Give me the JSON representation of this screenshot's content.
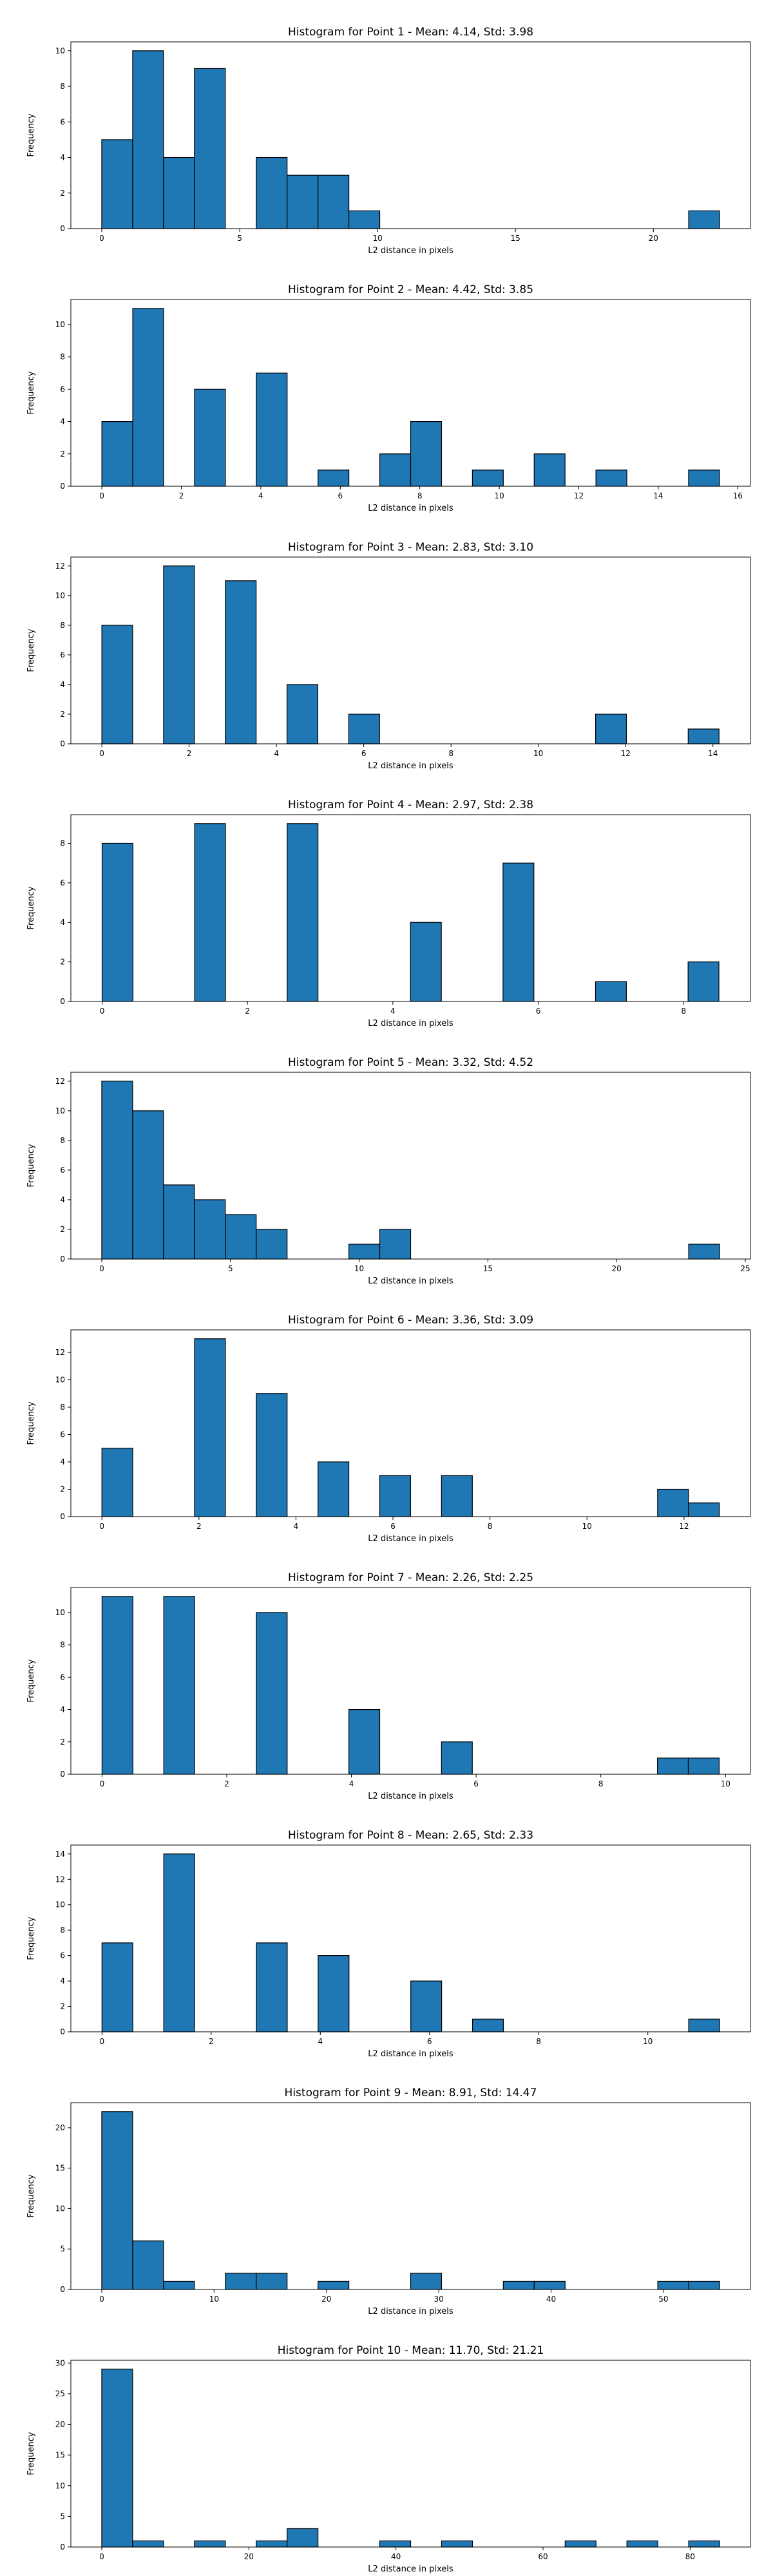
{
  "chart_data": [
    {
      "type": "bar",
      "title": "Histogram for Point 1 - Mean: 4.14, Std: 3.98",
      "xlabel": "L2 distance in pixels",
      "ylabel": "Frequency",
      "xlim": [
        -1.12,
        23.52
      ],
      "ylim": [
        0,
        10.5
      ],
      "xticks": [
        0,
        5,
        10,
        15,
        20
      ],
      "yticks": [
        0,
        2,
        4,
        6,
        8,
        10
      ],
      "bin_start": 0,
      "bin_width": 1.12,
      "counts": [
        5,
        10,
        4,
        9,
        0,
        4,
        3,
        3,
        1,
        0,
        0,
        0,
        0,
        0,
        0,
        0,
        0,
        0,
        0,
        1
      ],
      "bar_color": "#1f77b4",
      "edge_color": "#000000",
      "grid": false
    },
    {
      "type": "bar",
      "title": "Histogram for Point 2 - Mean: 4.42, Std: 3.85",
      "xlabel": "L2 distance in pixels",
      "ylabel": "Frequency",
      "xlim": [
        -0.78,
        16.32
      ],
      "ylim": [
        0,
        11.55
      ],
      "xticks": [
        0,
        2,
        4,
        6,
        8,
        10,
        12,
        14,
        16
      ],
      "yticks": [
        0,
        2,
        4,
        6,
        8,
        10
      ],
      "bin_start": 0,
      "bin_width": 0.777,
      "counts": [
        4,
        11,
        0,
        6,
        0,
        7,
        0,
        1,
        0,
        2,
        4,
        0,
        1,
        0,
        2,
        0,
        1,
        0,
        0,
        1
      ],
      "bar_color": "#1f77b4",
      "edge_color": "#000000",
      "grid": false
    },
    {
      "type": "bar",
      "title": "Histogram for Point 3 - Mean: 2.83, Std: 3.10",
      "xlabel": "L2 distance in pixels",
      "ylabel": "Frequency",
      "xlim": [
        -0.71,
        14.86
      ],
      "ylim": [
        0,
        12.6
      ],
      "xticks": [
        0,
        2,
        4,
        6,
        8,
        10,
        12,
        14
      ],
      "yticks": [
        0,
        2,
        4,
        6,
        8,
        10,
        12
      ],
      "bin_start": 0,
      "bin_width": 0.707,
      "counts": [
        8,
        0,
        12,
        0,
        11,
        0,
        4,
        0,
        2,
        0,
        0,
        0,
        0,
        0,
        0,
        0,
        2,
        0,
        0,
        1
      ],
      "bar_color": "#1f77b4",
      "edge_color": "#000000",
      "grid": false
    },
    {
      "type": "bar",
      "title": "Histogram for Point 4 - Mean: 2.97, Std: 2.38",
      "xlabel": "L2 distance in pixels",
      "ylabel": "Frequency",
      "xlim": [
        -0.43,
        8.92
      ],
      "ylim": [
        0,
        9.45
      ],
      "xticks": [
        0,
        2,
        4,
        6,
        8
      ],
      "yticks": [
        0,
        2,
        4,
        6,
        8
      ],
      "bin_start": 0,
      "bin_width": 0.4243,
      "counts": [
        8,
        0,
        0,
        9,
        0,
        0,
        9,
        0,
        0,
        0,
        4,
        0,
        0,
        7,
        0,
        0,
        1,
        0,
        0,
        2
      ],
      "bar_color": "#1f77b4",
      "edge_color": "#000000",
      "grid": false
    },
    {
      "type": "bar",
      "title": "Histogram for Point 5 - Mean: 3.32, Std: 4.52",
      "xlabel": "L2 distance in pixels",
      "ylabel": "Frequency",
      "xlim": [
        -1.2,
        25.2
      ],
      "ylim": [
        0,
        12.6
      ],
      "xticks": [
        0,
        5,
        10,
        15,
        20,
        25
      ],
      "yticks": [
        0,
        2,
        4,
        6,
        8,
        10,
        12
      ],
      "bin_start": 0,
      "bin_width": 1.2,
      "counts": [
        12,
        10,
        5,
        4,
        3,
        2,
        0,
        0,
        1,
        2,
        0,
        0,
        0,
        0,
        0,
        0,
        0,
        0,
        0,
        1
      ],
      "bar_color": "#1f77b4",
      "edge_color": "#000000",
      "grid": false
    },
    {
      "type": "bar",
      "title": "Histogram for Point 6 - Mean: 3.36, Std: 3.09",
      "xlabel": "L2 distance in pixels",
      "ylabel": "Frequency",
      "xlim": [
        -0.64,
        13.37
      ],
      "ylim": [
        0,
        13.65
      ],
      "xticks": [
        0,
        2,
        4,
        6,
        8,
        10,
        12
      ],
      "yticks": [
        0,
        2,
        4,
        6,
        8,
        10,
        12
      ],
      "bin_start": 0,
      "bin_width": 0.6364,
      "counts": [
        5,
        0,
        0,
        13,
        0,
        9,
        0,
        4,
        0,
        3,
        0,
        3,
        0,
        0,
        0,
        0,
        0,
        0,
        2,
        1
      ],
      "bar_color": "#1f77b4",
      "edge_color": "#000000",
      "grid": false
    },
    {
      "type": "bar",
      "title": "Histogram for Point 7 - Mean: 2.26, Std: 2.25",
      "xlabel": "L2 distance in pixels",
      "ylabel": "Frequency",
      "xlim": [
        -0.5,
        10.4
      ],
      "ylim": [
        0,
        11.55
      ],
      "xticks": [
        0,
        2,
        4,
        6,
        8,
        10
      ],
      "yticks": [
        0,
        2,
        4,
        6,
        8,
        10
      ],
      "bin_start": 0,
      "bin_width": 0.4949,
      "counts": [
        11,
        0,
        11,
        0,
        0,
        10,
        0,
        0,
        4,
        0,
        0,
        2,
        0,
        0,
        0,
        0,
        0,
        0,
        1,
        1
      ],
      "bar_color": "#1f77b4",
      "edge_color": "#000000",
      "grid": false
    },
    {
      "type": "bar",
      "title": "Histogram for Point 8 - Mean: 2.65, Std: 2.33",
      "xlabel": "L2 distance in pixels",
      "ylabel": "Frequency",
      "xlim": [
        -0.57,
        11.88
      ],
      "ylim": [
        0,
        14.7
      ],
      "xticks": [
        0,
        2,
        4,
        6,
        8,
        10
      ],
      "yticks": [
        0,
        2,
        4,
        6,
        8,
        10,
        12,
        14
      ],
      "bin_start": 0,
      "bin_width": 0.5657,
      "counts": [
        7,
        0,
        14,
        0,
        0,
        7,
        0,
        6,
        0,
        0,
        4,
        0,
        1,
        0,
        0,
        0,
        0,
        0,
        0,
        1
      ],
      "bar_color": "#1f77b4",
      "edge_color": "#000000",
      "grid": false
    },
    {
      "type": "bar",
      "title": "Histogram for Point 9 - Mean: 8.91, Std: 14.47",
      "xlabel": "L2 distance in pixels",
      "ylabel": "Frequency",
      "xlim": [
        -2.75,
        57.75
      ],
      "ylim": [
        0,
        23.1
      ],
      "xticks": [
        0,
        10,
        20,
        30,
        40,
        50
      ],
      "yticks": [
        0,
        5,
        10,
        15,
        20
      ],
      "bin_start": 0,
      "bin_width": 2.75,
      "counts": [
        22,
        6,
        1,
        0,
        2,
        2,
        0,
        1,
        0,
        0,
        2,
        0,
        0,
        1,
        1,
        0,
        0,
        0,
        1,
        1
      ],
      "bar_color": "#1f77b4",
      "edge_color": "#000000",
      "grid": false
    },
    {
      "type": "bar",
      "title": "Histogram for Point 10 - Mean: 11.70, Std: 21.21",
      "xlabel": "L2 distance in pixels",
      "ylabel": "Frequency",
      "xlim": [
        -4.2,
        88.2
      ],
      "ylim": [
        0,
        30.45
      ],
      "xticks": [
        0,
        20,
        40,
        60,
        80
      ],
      "yticks": [
        0,
        5,
        10,
        15,
        20,
        25,
        30
      ],
      "bin_start": 0,
      "bin_width": 4.2,
      "counts": [
        29,
        1,
        0,
        1,
        0,
        1,
        3,
        0,
        0,
        1,
        0,
        1,
        0,
        0,
        0,
        1,
        0,
        1,
        0,
        1
      ],
      "bar_color": "#1f77b4",
      "edge_color": "#000000",
      "grid": false
    }
  ]
}
